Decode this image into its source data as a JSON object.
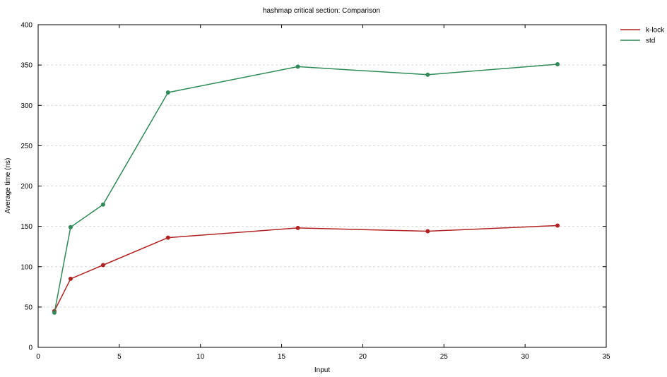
{
  "chart_data": {
    "type": "line",
    "title": "hashmap critical section: Comparison",
    "xlabel": "Input",
    "ylabel": "Average time (ns)",
    "xlim": [
      0,
      35
    ],
    "ylim": [
      0,
      400
    ],
    "xticks": [
      0,
      5,
      10,
      15,
      20,
      25,
      30,
      35
    ],
    "yticks": [
      0,
      50,
      100,
      150,
      200,
      250,
      300,
      350,
      400
    ],
    "grid": "horizontal dashed",
    "legend_position": "top-right outside",
    "series": [
      {
        "name": "k-lock",
        "color": "#b22222",
        "x": [
          1,
          2,
          4,
          8,
          16,
          24,
          32
        ],
        "y": [
          45,
          85,
          102,
          136,
          148,
          144,
          151
        ]
      },
      {
        "name": "std",
        "color": "#2e8b57",
        "x": [
          1,
          2,
          4,
          8,
          16,
          24,
          32
        ],
        "y": [
          43,
          149,
          177,
          316,
          348,
          338,
          351
        ]
      }
    ]
  }
}
